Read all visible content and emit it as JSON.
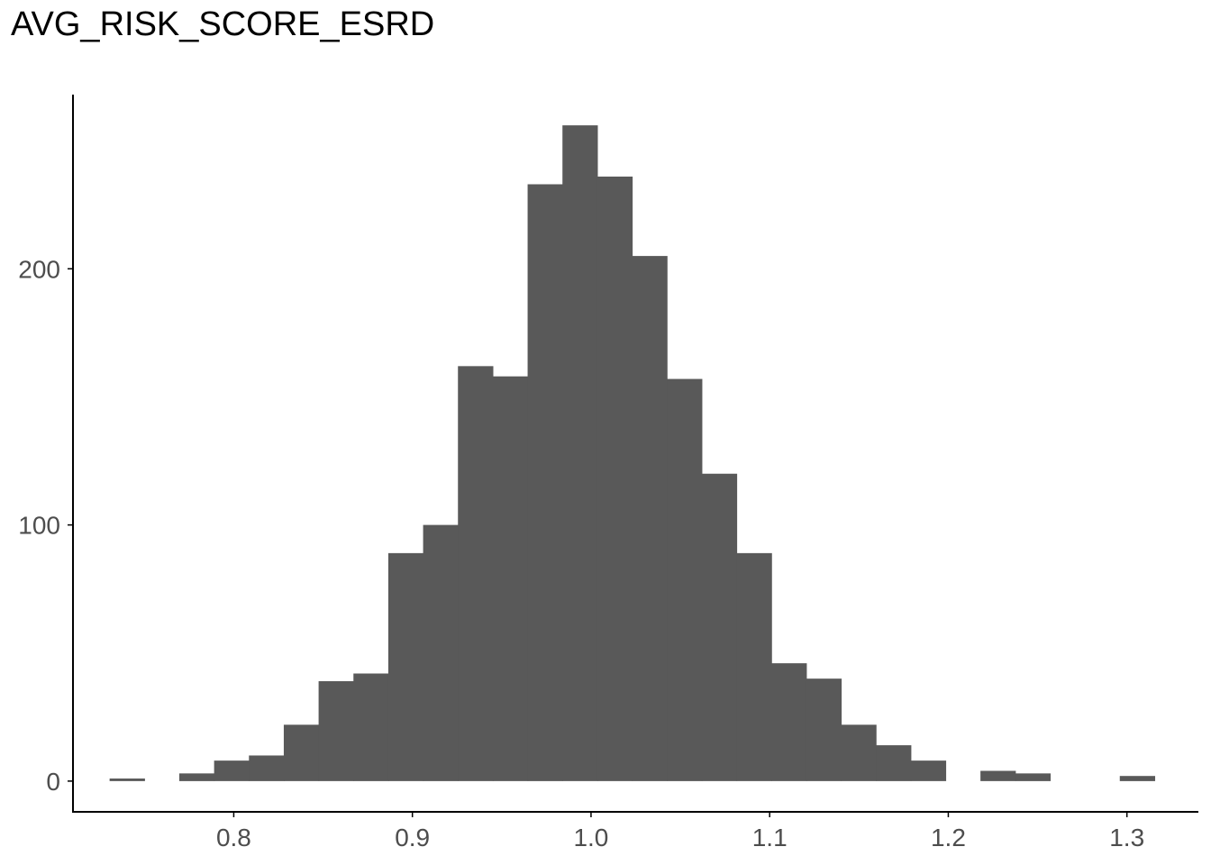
{
  "chart_data": {
    "type": "bar",
    "title": "AVG_RISK_SCORE_ESRD",
    "xlabel": "",
    "ylabel": "",
    "bin_width": 0.0195,
    "bin_start": 0.7305,
    "counts": [
      1,
      0,
      3,
      8,
      10,
      22,
      39,
      42,
      89,
      100,
      162,
      158,
      233,
      256,
      236,
      205,
      157,
      120,
      89,
      46,
      40,
      22,
      14,
      8,
      0,
      4,
      3,
      0,
      0,
      2
    ],
    "xlim": [
      0.71,
      1.34
    ],
    "ylim": [
      -12,
      268
    ],
    "x_ticks": [
      {
        "value": 0.8,
        "label": "0.8"
      },
      {
        "value": 0.9,
        "label": "0.9"
      },
      {
        "value": 1.0,
        "label": "1.0"
      },
      {
        "value": 1.1,
        "label": "1.1"
      },
      {
        "value": 1.2,
        "label": "1.2"
      },
      {
        "value": 1.3,
        "label": "1.3"
      }
    ],
    "y_ticks": [
      {
        "value": 0,
        "label": "0"
      },
      {
        "value": 100,
        "label": "100"
      },
      {
        "value": 200,
        "label": "200"
      }
    ],
    "bar_color": "#595959",
    "axis_color": "#000000",
    "grid": false
  }
}
